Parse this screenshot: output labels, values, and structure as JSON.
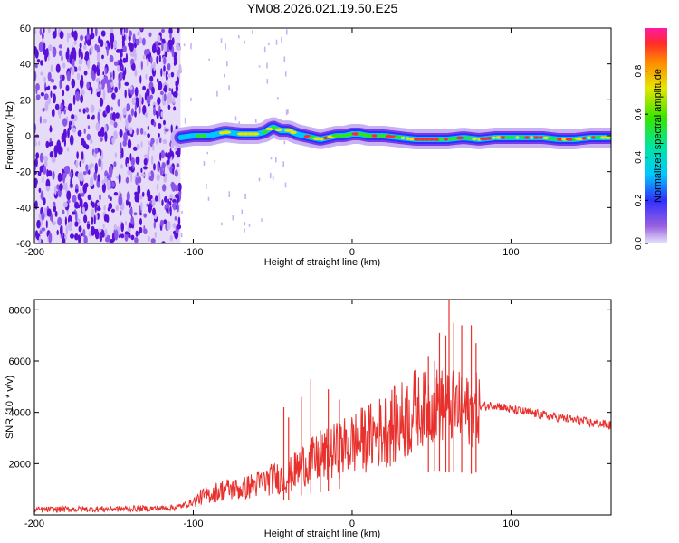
{
  "title": "YM08.2026.021.19.50.E25",
  "chart_data": [
    {
      "type": "heatmap",
      "name": "spectrogram",
      "title": "YM08.2026.021.19.50.E25",
      "xlabel": "Height of straight line (km)",
      "ylabel": "Frequency (Hz)",
      "xlim": [
        -200,
        163
      ],
      "ylim": [
        -60,
        60
      ],
      "x_ticks": [
        -200,
        -100,
        0,
        100
      ],
      "y_ticks": [
        -60,
        -40,
        -20,
        0,
        20,
        40,
        60
      ],
      "noise_region_x": [
        -200,
        -108
      ],
      "signal_start_x": -108,
      "trace": {
        "x": [
          -108,
          -100,
          -90,
          -80,
          -70,
          -60,
          -55,
          -50,
          -45,
          -40,
          -35,
          -30,
          -25,
          -20,
          -15,
          -10,
          -5,
          0,
          5,
          10,
          20,
          30,
          40,
          50,
          60,
          70,
          80,
          90,
          100,
          110,
          120,
          130,
          140,
          150,
          163
        ],
        "y": [
          -1,
          0,
          0,
          2,
          1,
          1,
          2,
          5,
          3,
          3,
          1,
          0,
          -1,
          -2,
          -1,
          0,
          0,
          1,
          1,
          0,
          0,
          -1,
          -2,
          -2,
          -2,
          -1,
          -2,
          -1,
          -1,
          -1,
          -1,
          -2,
          -2,
          -1,
          -1
        ]
      },
      "colorbar": {
        "label": "Normalized spectral amplitude",
        "ticks": [
          0.0,
          0.2,
          0.4,
          0.6,
          0.8
        ],
        "range": [
          0,
          1
        ]
      }
    },
    {
      "type": "line",
      "name": "snr",
      "xlabel": "Height of straight line (km)",
      "ylabel": "SNR (10 * v/v)",
      "xlim": [
        -200,
        163
      ],
      "ylim": [
        0,
        8400
      ],
      "x_ticks": [
        -200,
        -100,
        0,
        100
      ],
      "y_ticks": [
        2000,
        4000,
        6000,
        8000
      ],
      "color": "#e8302c",
      "series": [
        {
          "name": "SNR",
          "x": [
            -200,
            -180,
            -160,
            -140,
            -120,
            -110,
            -100,
            -95,
            -90,
            -80,
            -70,
            -60,
            -50,
            -40,
            -30,
            -20,
            -10,
            0,
            10,
            20,
            30,
            40,
            50,
            55,
            60,
            65,
            70,
            75,
            80,
            90,
            100,
            110,
            120,
            130,
            140,
            150,
            163
          ],
          "y": [
            200,
            220,
            230,
            240,
            260,
            300,
            500,
            700,
            800,
            1000,
            1000,
            1200,
            1400,
            1500,
            2000,
            2200,
            2500,
            2800,
            3000,
            3300,
            3600,
            4000,
            4300,
            4300,
            4200,
            4200,
            4100,
            4000,
            4200,
            4300,
            4100,
            4000,
            3900,
            3800,
            3700,
            3600,
            3500
          ]
        }
      ],
      "spikes": [
        {
          "x": -43,
          "y": 4200
        },
        {
          "x": -40,
          "y": 3800
        },
        {
          "x": -32,
          "y": 4600
        },
        {
          "x": -26,
          "y": 5300
        },
        {
          "x": -20,
          "y": 3300
        },
        {
          "x": -15,
          "y": 4900
        },
        {
          "x": -8,
          "y": 4500
        },
        {
          "x": 48,
          "y": 6200
        },
        {
          "x": 52,
          "y": 6000
        },
        {
          "x": 55,
          "y": 7100
        },
        {
          "x": 59,
          "y": 7000
        },
        {
          "x": 61,
          "y": 8500
        },
        {
          "x": 64,
          "y": 7500
        },
        {
          "x": 69,
          "y": 7400
        },
        {
          "x": 75,
          "y": 7400
        },
        {
          "x": 78,
          "y": 6700
        }
      ]
    }
  ]
}
